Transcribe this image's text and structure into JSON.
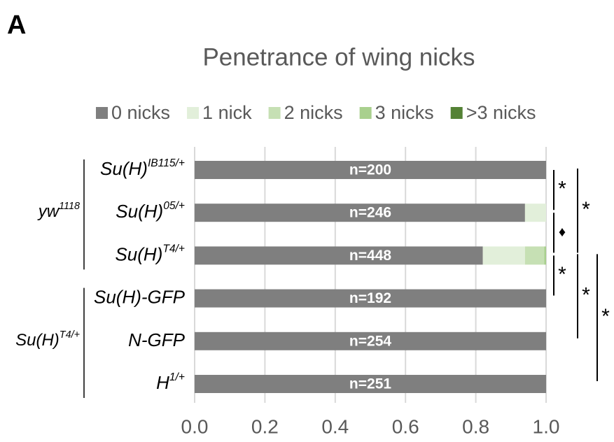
{
  "panel_label": "A",
  "chart_data": {
    "type": "stacked_bar_horizontal",
    "title": "Penetrance of wing nicks",
    "categories": [
      {
        "text": "Su(H)",
        "sup": "IB115/+"
      },
      {
        "text": "Su(H)",
        "sup": "05/+"
      },
      {
        "text": "Su(H)",
        "sup": "T4/+"
      },
      {
        "text": "Su(H)-GFP",
        "sup": null
      },
      {
        "text": "N-GFP",
        "sup": null
      },
      {
        "text": "H",
        "sup": "1/+"
      }
    ],
    "groups": [
      {
        "text": "yw",
        "sup": "1118",
        "from": 0,
        "to": 2
      },
      {
        "text": "Su(H)",
        "sup": "T4/+",
        "from": 3,
        "to": 5
      }
    ],
    "series": [
      {
        "name": "0 nicks",
        "color": "#7f7f7f",
        "values": [
          1.0,
          0.94,
          0.82,
          1.0,
          1.0,
          1.0
        ]
      },
      {
        "name": "1 nick",
        "color": "#e2efda",
        "values": [
          0,
          0.06,
          0.12,
          0,
          0,
          0
        ]
      },
      {
        "name": "2 nicks",
        "color": "#c6e0b4",
        "values": [
          0,
          0,
          0.055,
          0,
          0,
          0
        ]
      },
      {
        "name": "3 nicks",
        "color": "#a9d08e",
        "values": [
          0,
          0,
          0.005,
          0,
          0,
          0
        ]
      },
      {
        "name": ">3 nicks",
        "color": "#548235",
        "values": [
          0,
          0,
          0,
          0,
          0,
          0
        ]
      }
    ],
    "bar_labels": [
      "n=200",
      "n=246",
      "n=448",
      "n=192",
      "n=254",
      "n=251"
    ],
    "significance": [
      {
        "from": 0,
        "to": 1,
        "label": "*"
      },
      {
        "from": 1,
        "to": 2,
        "label": "♦"
      },
      {
        "from": 2,
        "to": 3,
        "label": "*"
      },
      {
        "from": 0,
        "to": 2,
        "label": "*"
      },
      {
        "from": 2,
        "to": 4,
        "label": "*"
      },
      {
        "from": 2,
        "to": 5,
        "label": "*"
      }
    ],
    "xlim": [
      0,
      1
    ],
    "xticks": [
      {
        "value": 0,
        "label": "0.0"
      },
      {
        "value": 0.2,
        "label": "0.2"
      },
      {
        "value": 0.4,
        "label": "0.4"
      },
      {
        "value": 0.6,
        "label": "0.6"
      },
      {
        "value": 0.8,
        "label": "0.8"
      },
      {
        "value": 1.0,
        "label": "1.0"
      }
    ],
    "grid": true
  }
}
